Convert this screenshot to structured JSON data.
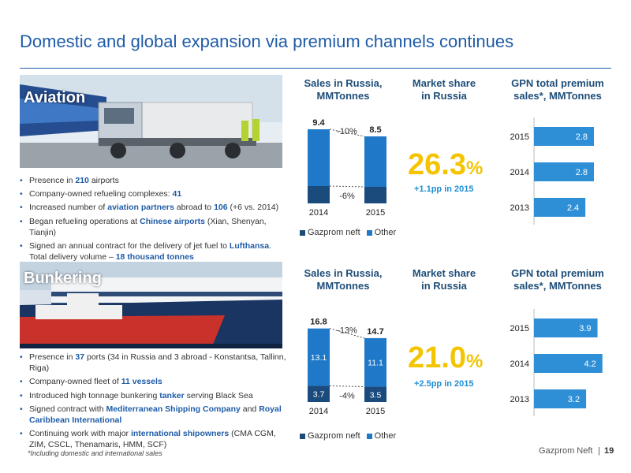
{
  "page_title": "Domestic and global expansion via premium channels continues",
  "legend": {
    "gazprom": "Gazprom neft",
    "other": "Other"
  },
  "colors": {
    "gazprom_dark": "#1b4a7d",
    "other_blue": "#1f78c8",
    "premium_blue": "#2f8fd6",
    "share_yellow": "#f4c400",
    "title_blue": "#1f5ca8"
  },
  "aviation": {
    "label": "Aviation",
    "sales_title": "Sales in Russia,\nMMTonnes",
    "share_title": "Market share\nin Russia",
    "premium_title": "GPN total premium\nsales*, MMTonnes",
    "share_value": "26.3",
    "share_unit": "%",
    "share_delta": "+1.1pp in 2015",
    "bullets": [
      [
        "Presence in ",
        {
          "b": "210"
        },
        " airports"
      ],
      [
        "Company-owned refueling complexes: ",
        {
          "b": "41"
        }
      ],
      [
        "Increased number of ",
        {
          "b": "aviation partners"
        },
        " abroad to ",
        {
          "b": "106"
        },
        " (+6 vs. 2014)"
      ],
      [
        "Began refueling operations at ",
        {
          "b": "Chinese airports"
        },
        " (Xian, Shenyan, Tianjin)"
      ],
      [
        "Signed an annual contract for the delivery of jet fuel to ",
        {
          "b": "Lufthansa"
        },
        ". Total delivery volume – ",
        {
          "b": "18 thousand tonnes"
        }
      ]
    ]
  },
  "bunkering": {
    "label": "Bunkering",
    "sales_title": "Sales in Russia,\nMMTonnes",
    "share_title": "Market share\nin Russia",
    "premium_title": "GPN total premium\nsales*, MMTonnes",
    "share_value": "21.0",
    "share_unit": "%",
    "share_delta": "+2.5pp in 2015",
    "bullets": [
      [
        "Presence in ",
        {
          "b": "37"
        },
        " ports (34 in Russia and 3 abroad - Konstantsa, Tallinn, Riga)"
      ],
      [
        "Company-owned fleet of ",
        {
          "b": "11 vessels"
        }
      ],
      [
        "Introduced high tonnage bunkering ",
        {
          "b": "tanker"
        },
        " serving Black Sea"
      ],
      [
        "Signed contract with ",
        {
          "b": "Mediterranean Shipping Company"
        },
        " and ",
        {
          "b": "Royal Caribbean International"
        }
      ],
      [
        "Continuing work with major ",
        {
          "b": "international shipowners"
        },
        " (CMA CGM, ZIM, CSCL, Thenamaris, HMM, SCF)"
      ]
    ]
  },
  "chart_data": [
    {
      "id": "aviation-sales",
      "type": "bar",
      "stacked": true,
      "categories": [
        "2014",
        "2015"
      ],
      "totals": [
        9.4,
        8.5
      ],
      "total_labels": [
        "9.4",
        "8.5"
      ],
      "series": [
        {
          "name": "Gazprom neft",
          "values": [
            2.2,
            2.1
          ]
        },
        {
          "name": "Other",
          "values": [
            7.2,
            6.4
          ]
        }
      ],
      "segment_labels": [],
      "annotations": [
        "-10%",
        "-6%"
      ],
      "ylim": [
        0,
        10
      ]
    },
    {
      "id": "aviation-premium",
      "type": "bar",
      "orientation": "horizontal",
      "categories": [
        "2015",
        "2014",
        "2013"
      ],
      "values": [
        2.8,
        2.8,
        2.4
      ],
      "value_labels": [
        "2.8",
        "2.8",
        "2.4"
      ],
      "xlim": [
        0,
        3.5
      ]
    },
    {
      "id": "bunkering-sales",
      "type": "bar",
      "stacked": true,
      "categories": [
        "2014",
        "2015"
      ],
      "totals": [
        16.8,
        14.7
      ],
      "total_labels": [
        "16.8",
        "14.7"
      ],
      "series": [
        {
          "name": "Gazprom neft",
          "values": [
            3.7,
            3.5
          ],
          "labels": [
            "3.7",
            "3.5"
          ]
        },
        {
          "name": "Other",
          "values": [
            13.1,
            11.1
          ],
          "labels": [
            "13.1",
            "11.1"
          ]
        }
      ],
      "annotations": [
        "-13%",
        "-4%"
      ],
      "ylim": [
        0,
        18
      ]
    },
    {
      "id": "bunkering-premium",
      "type": "bar",
      "orientation": "horizontal",
      "categories": [
        "2015",
        "2014",
        "2013"
      ],
      "values": [
        3.9,
        4.2,
        3.2
      ],
      "value_labels": [
        "3.9",
        "4.2",
        "3.2"
      ],
      "xlim": [
        0,
        4.6
      ]
    }
  ],
  "footnote": "*Including domestic and international sales",
  "footer": {
    "brand": "Gazprom Neft",
    "separator": "|",
    "page": "19"
  }
}
